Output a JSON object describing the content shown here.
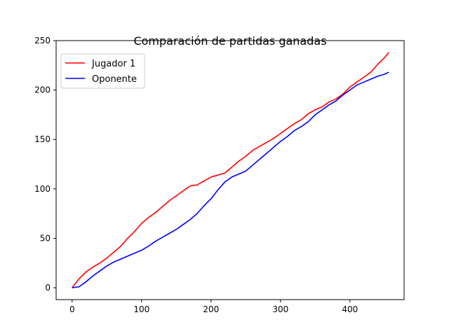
{
  "chart_data": {
    "type": "line",
    "title": "Comparación de partidas ganadas",
    "xlabel": "",
    "ylabel": "",
    "xlim": [
      -23,
      478
    ],
    "ylim": [
      -12,
      250
    ],
    "xticks": [
      0,
      100,
      200,
      300,
      400
    ],
    "yticks": [
      0,
      50,
      100,
      150,
      200,
      250
    ],
    "grid": false,
    "legend_position": "top-left",
    "series": [
      {
        "name": "Jugador 1",
        "color": "#ff0000",
        "x": [
          0,
          10,
          20,
          30,
          40,
          50,
          60,
          70,
          80,
          90,
          100,
          110,
          120,
          130,
          140,
          150,
          160,
          170,
          180,
          190,
          200,
          210,
          220,
          230,
          240,
          250,
          260,
          270,
          280,
          290,
          300,
          310,
          320,
          330,
          340,
          350,
          360,
          370,
          380,
          390,
          400,
          410,
          420,
          430,
          440,
          450,
          456
        ],
        "y": [
          0,
          9,
          16,
          21,
          25,
          30,
          36,
          42,
          50,
          57,
          65,
          71,
          76,
          82,
          88,
          93,
          98,
          103,
          104,
          108,
          112,
          114,
          116,
          122,
          128,
          133,
          139,
          143,
          147,
          151,
          156,
          161,
          166,
          170,
          176,
          180,
          183,
          188,
          191,
          196,
          203,
          208,
          213,
          218,
          226,
          233,
          238
        ]
      },
      {
        "name": "Oponente",
        "color": "#0000ff",
        "x": [
          0,
          10,
          20,
          30,
          40,
          50,
          60,
          70,
          80,
          90,
          100,
          110,
          120,
          130,
          140,
          150,
          160,
          170,
          180,
          190,
          200,
          210,
          220,
          230,
          240,
          250,
          260,
          270,
          280,
          290,
          300,
          310,
          320,
          330,
          340,
          350,
          360,
          370,
          380,
          390,
          400,
          410,
          420,
          430,
          440,
          450,
          456
        ],
        "y": [
          0,
          1,
          6,
          12,
          17,
          22,
          26,
          29,
          32,
          35,
          38,
          42,
          47,
          51,
          55,
          59,
          64,
          69,
          75,
          83,
          90,
          99,
          107,
          112,
          115,
          118,
          124,
          130,
          136,
          142,
          148,
          153,
          159,
          163,
          168,
          175,
          180,
          185,
          189,
          195,
          200,
          205,
          208,
          211,
          214,
          216,
          218
        ]
      }
    ]
  }
}
